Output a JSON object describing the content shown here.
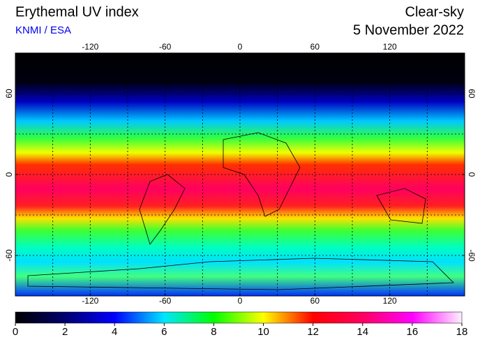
{
  "header": {
    "title": "Erythemal UV index",
    "source": "KNMI / ESA",
    "mode": "Clear-sky",
    "date": "5 November 2022"
  },
  "map": {
    "lonlim": [
      -180,
      180
    ],
    "latlim": [
      90,
      -90
    ],
    "lon_ticks": [
      -120,
      -60,
      0,
      60,
      120
    ],
    "lat_ticks": [
      60,
      0,
      -60
    ],
    "grid_lons": [
      -150,
      -120,
      -90,
      -60,
      -30,
      0,
      30,
      60,
      90,
      120,
      150
    ],
    "grid_lats": [
      60,
      30,
      0,
      -30,
      -60
    ]
  },
  "colorbar": {
    "lim": [
      0,
      18
    ],
    "ticks": [
      0,
      2,
      4,
      6,
      8,
      10,
      12,
      14,
      16,
      18
    ],
    "colors": [
      "#000000",
      "#00006e",
      "#0000ff",
      "#00e6ff",
      "#00ff00",
      "#ffff00",
      "#ff0000",
      "#ff0060",
      "#ff00ff",
      "#fff0ff"
    ]
  }
}
